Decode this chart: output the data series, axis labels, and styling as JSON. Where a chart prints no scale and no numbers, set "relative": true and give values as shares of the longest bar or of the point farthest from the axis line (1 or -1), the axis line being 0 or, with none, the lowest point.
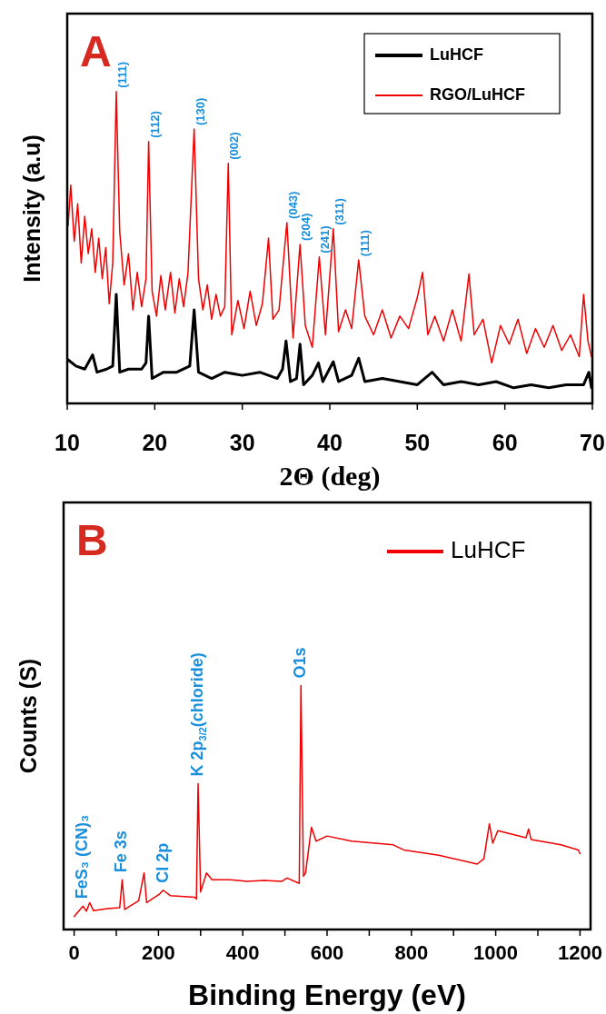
{
  "chart_data": [
    {
      "type": "line",
      "title": "A",
      "xlabel": "2Θ (deg)",
      "ylabel": "Intensity (a.u)",
      "relative": true,
      "xlim": [
        10,
        70
      ],
      "xticks": [
        10,
        20,
        30,
        40,
        50,
        60,
        70
      ],
      "legend": "top right",
      "grid": false,
      "series": [
        {
          "name": "LuHCF",
          "color": "#000000",
          "x": [
            10.1,
            11,
            12,
            12.9,
            13.4,
            14.5,
            15.2,
            15.6,
            16.0,
            17,
            18.5,
            19.0,
            19.3,
            19.7,
            21,
            22.5,
            24.0,
            24.5,
            25.0,
            26.5,
            28,
            30,
            32,
            34,
            34.6,
            35.0,
            35.5,
            36.2,
            36.6,
            37.0,
            38.0,
            38.7,
            39.2,
            40.4,
            41,
            42.5,
            43.3,
            44,
            46,
            48,
            50,
            51.7,
            53,
            55,
            57,
            59,
            61,
            63,
            65,
            67,
            69,
            69.6,
            69.9
          ],
          "values": [
            0.14,
            0.12,
            0.11,
            0.156,
            0.1,
            0.11,
            0.12,
            0.35,
            0.1,
            0.11,
            0.11,
            0.13,
            0.28,
            0.08,
            0.1,
            0.1,
            0.12,
            0.3,
            0.1,
            0.08,
            0.1,
            0.09,
            0.1,
            0.08,
            0.11,
            0.2,
            0.07,
            0.08,
            0.19,
            0.06,
            0.09,
            0.13,
            0.07,
            0.134,
            0.07,
            0.09,
            0.145,
            0.07,
            0.08,
            0.07,
            0.06,
            0.1,
            0.06,
            0.07,
            0.06,
            0.07,
            0.05,
            0.06,
            0.05,
            0.06,
            0.06,
            0.1,
            0.05
          ]
        },
        {
          "name": "RGO/LuHCF",
          "color": "#f00000",
          "x": [
            10.1,
            10.4,
            10.8,
            11.2,
            11.6,
            12.0,
            12.4,
            12.8,
            13.2,
            13.6,
            14.0,
            14.4,
            14.8,
            15.2,
            15.6,
            16.0,
            16.5,
            17.0,
            17.5,
            18.0,
            18.5,
            19.0,
            19.3,
            19.7,
            20.2,
            20.7,
            21.2,
            21.8,
            22.3,
            22.8,
            23.3,
            23.8,
            24.5,
            25.0,
            25.5,
            26.0,
            26.5,
            27.0,
            27.5,
            28.0,
            28.4,
            28.8,
            29.5,
            30.2,
            30.9,
            31.6,
            32.3,
            33.0,
            33.5,
            34.2,
            35.1,
            35.8,
            36.6,
            37.2,
            38.0,
            38.8,
            39.5,
            40.4,
            41.0,
            41.8,
            42.5,
            43.3,
            44.0,
            45.0,
            46.0,
            47.0,
            48.0,
            49.0,
            50.0,
            50.6,
            51.2,
            52.0,
            53.0,
            54.0,
            55.0,
            55.9,
            56.5,
            57.5,
            58.5,
            59.5,
            60.5,
            61.5,
            62.5,
            63.5,
            64.5,
            65.5,
            66.5,
            67.5,
            68.5,
            69.0,
            69.5,
            69.9
          ],
          "values": [
            0.57,
            0.7,
            0.52,
            0.64,
            0.45,
            0.6,
            0.48,
            0.56,
            0.42,
            0.53,
            0.4,
            0.5,
            0.32,
            0.45,
            1.0,
            0.55,
            0.38,
            0.48,
            0.3,
            0.42,
            0.31,
            0.4,
            0.84,
            0.36,
            0.28,
            0.41,
            0.3,
            0.42,
            0.29,
            0.4,
            0.31,
            0.42,
            0.88,
            0.4,
            0.3,
            0.38,
            0.27,
            0.35,
            0.28,
            0.31,
            0.77,
            0.22,
            0.33,
            0.24,
            0.36,
            0.25,
            0.32,
            0.53,
            0.27,
            0.3,
            0.58,
            0.21,
            0.51,
            0.25,
            0.18,
            0.47,
            0.22,
            0.56,
            0.23,
            0.3,
            0.24,
            0.46,
            0.28,
            0.22,
            0.3,
            0.21,
            0.28,
            0.24,
            0.34,
            0.42,
            0.22,
            0.28,
            0.2,
            0.3,
            0.2,
            0.415,
            0.22,
            0.27,
            0.13,
            0.25,
            0.19,
            0.27,
            0.16,
            0.24,
            0.18,
            0.25,
            0.17,
            0.22,
            0.15,
            0.35,
            0.2,
            0.15
          ]
        }
      ],
      "annotations": [
        {
          "text": "(111)",
          "x": 15.6,
          "y": 1.0
        },
        {
          "text": "(112)",
          "x": 19.3,
          "y": 0.84
        },
        {
          "text": "(130)",
          "x": 24.5,
          "y": 0.88
        },
        {
          "text": "(002)",
          "x": 28.4,
          "y": 0.77
        },
        {
          "text": "(043)",
          "x": 35.1,
          "y": 0.58
        },
        {
          "text": "(204)",
          "x": 36.6,
          "y": 0.51
        },
        {
          "text": "(241)",
          "x": 38.8,
          "y": 0.47
        },
        {
          "text": "(311)",
          "x": 40.4,
          "y": 0.56
        },
        {
          "text": "(111)",
          "x": 43.3,
          "y": 0.46
        }
      ]
    },
    {
      "type": "line",
      "title": "B",
      "xlabel": "Binding Energy (eV)",
      "ylabel": "Counts (S)",
      "relative": true,
      "xlim": [
        -25,
        1225
      ],
      "xticks": [
        0,
        {
          "value": 100,
          "label": null
        },
        200,
        {
          "value": 300,
          "label": null
        },
        400,
        {
          "value": 500,
          "label": null
        },
        600,
        {
          "value": 700,
          "label": null
        },
        800,
        {
          "value": 900,
          "label": null
        },
        1000,
        {
          "value": 1100,
          "label": null
        },
        1200
      ],
      "legend": "top right",
      "grid": false,
      "series": [
        {
          "name": "LuHCF",
          "color": "#f00000",
          "x": [
            0,
            21,
            29,
            37,
            46,
            79,
            108,
            114,
            120,
            153,
            166,
            172,
            203,
            211,
            228,
            286,
            290,
            294,
            300,
            314,
            327,
            368,
            410,
            451,
            492,
            505,
            534,
            538,
            544,
            549,
            563,
            574,
            600,
            658,
            757,
            782,
            865,
            956,
            972,
            985,
            993,
            1005,
            1072,
            1078,
            1084,
            1155,
            1196,
            1200
          ],
          "values": [
            0.053,
            0.096,
            0.075,
            0.11,
            0.077,
            0.086,
            0.089,
            0.204,
            0.082,
            0.118,
            0.232,
            0.11,
            0.146,
            0.161,
            0.139,
            0.132,
            0.125,
            0.598,
            0.154,
            0.232,
            0.204,
            0.204,
            0.197,
            0.201,
            0.197,
            0.211,
            0.189,
            1.0,
            0.218,
            0.232,
            0.419,
            0.362,
            0.383,
            0.362,
            0.347,
            0.326,
            0.304,
            0.268,
            0.29,
            0.433,
            0.354,
            0.405,
            0.376,
            0.412,
            0.369,
            0.347,
            0.326,
            0.311
          ]
        }
      ],
      "annotations": [
        {
          "text": "FeS₃ (CN)₃",
          "x": 21,
          "y": 0.096
        },
        {
          "text": "Fe 3s",
          "x": 114,
          "y": 0.204
        },
        {
          "text": "Cl 2p",
          "x": 211,
          "y": 0.161
        },
        {
          "text": "K 2p$_{3/2}$(chloride)",
          "x": 294,
          "y": 0.598
        },
        {
          "text": "O1s",
          "x": 538,
          "y": 1.0
        }
      ]
    }
  ]
}
